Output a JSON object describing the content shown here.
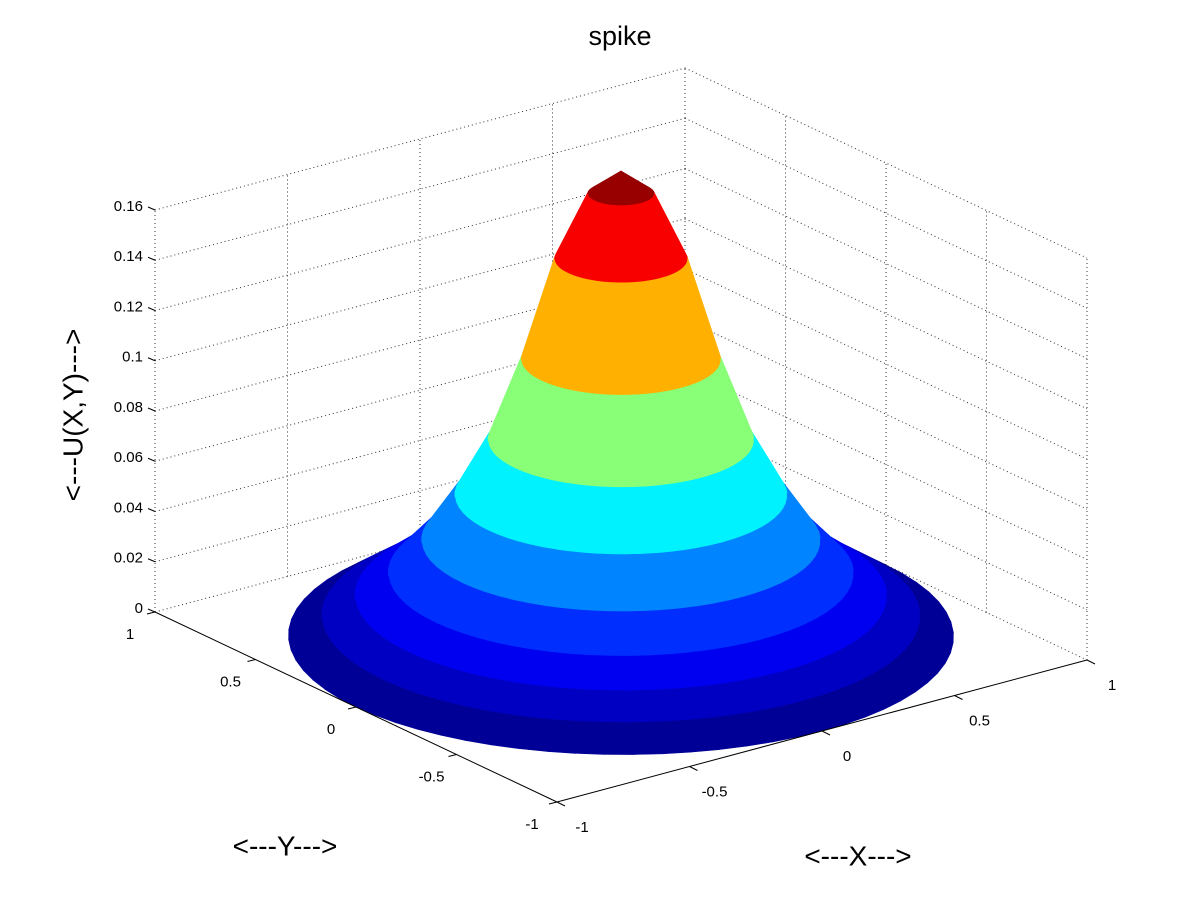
{
  "chart_data": {
    "type": "surface3d",
    "title": "spike",
    "xlabel": "<---X--->",
    "ylabel": "<---Y--->",
    "zlabel": "<---U(X,Y)--->",
    "xlim": [
      -1,
      1
    ],
    "xticks": [
      -1,
      -0.5,
      0,
      0.5,
      1
    ],
    "ylim": [
      -1,
      1
    ],
    "yticks": [
      -1,
      -0.5,
      0,
      0.5,
      1
    ],
    "zlim": [
      0,
      0.16
    ],
    "zticks": [
      0,
      0.02,
      0.04,
      0.06,
      0.08,
      0.1,
      0.12,
      0.14,
      0.16
    ],
    "grid": true,
    "colormap": "jet",
    "radius": [
      0,
      0.1,
      0.2,
      0.3,
      0.4,
      0.5,
      0.6,
      0.7,
      0.8,
      0.9,
      1
    ],
    "values": [
      0.185,
      0.176,
      0.15,
      0.11,
      0.078,
      0.056,
      0.038,
      0.025,
      0.016,
      0.008,
      0
    ]
  }
}
